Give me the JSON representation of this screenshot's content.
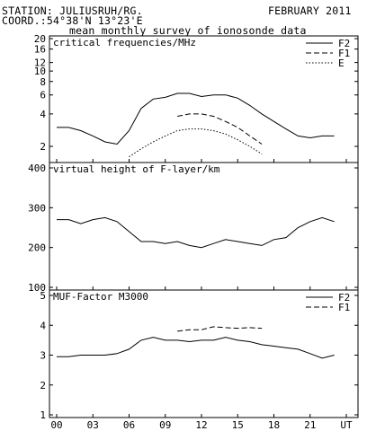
{
  "header": {
    "station": "STATION: JULIUSRUH/RG.",
    "date": "FEBRUARY 2011",
    "coord": "COORD.:54°38'N 13°23'E",
    "subtitle": "mean monthly survey of ionosonde data"
  },
  "chart_data": [
    {
      "type": "line",
      "title": "critical frequencies/MHz",
      "y_scale": "log",
      "ylim": [
        1.5,
        20
      ],
      "yticks": [
        "2",
        "4",
        "6",
        "8",
        "10",
        "12",
        "16",
        "20"
      ],
      "ytick_values": [
        2,
        4,
        6,
        8,
        10,
        12,
        16,
        20
      ],
      "x": [
        0,
        1,
        2,
        3,
        4,
        5,
        6,
        7,
        8,
        9,
        10,
        11,
        12,
        13,
        14,
        15,
        16,
        17,
        18,
        19,
        20,
        21,
        22,
        23
      ],
      "series": [
        {
          "name": "F2",
          "dash": "none",
          "values": [
            3.0,
            3.0,
            2.8,
            2.5,
            2.2,
            2.1,
            2.8,
            4.5,
            5.5,
            5.7,
            6.2,
            6.2,
            5.8,
            6.0,
            6.0,
            5.6,
            4.8,
            4.0,
            3.4,
            2.9,
            2.5,
            2.4,
            2.5,
            2.5
          ]
        },
        {
          "name": "F1",
          "dash": "6,3",
          "x": [
            10,
            11,
            12,
            13,
            14,
            15,
            16,
            17
          ],
          "values": [
            3.8,
            4.0,
            4.0,
            3.8,
            3.4,
            3.0,
            2.5,
            2.1
          ]
        },
        {
          "name": "E",
          "dash": "1.5,2",
          "x": [
            6,
            7,
            8,
            9,
            10,
            11,
            12,
            13,
            14,
            15,
            16,
            17
          ],
          "values": [
            1.6,
            1.9,
            2.2,
            2.5,
            2.8,
            2.9,
            2.9,
            2.8,
            2.6,
            2.3,
            2.0,
            1.7
          ]
        }
      ]
    },
    {
      "type": "line",
      "title": "virtual height of F-layer/km",
      "ylim": [
        100,
        400
      ],
      "yticks": [
        "100",
        "200",
        "300",
        "400"
      ],
      "ytick_values": [
        100,
        200,
        300,
        400
      ],
      "x": [
        0,
        1,
        2,
        3,
        4,
        5,
        6,
        7,
        8,
        9,
        10,
        11,
        12,
        13,
        14,
        15,
        16,
        17,
        18,
        19,
        20,
        21,
        22,
        23
      ],
      "series": [
        {
          "name": "",
          "dash": "none",
          "values": [
            270,
            270,
            260,
            270,
            275,
            265,
            240,
            215,
            215,
            210,
            215,
            205,
            200,
            210,
            220,
            215,
            210,
            205,
            220,
            225,
            250,
            265,
            275,
            265
          ]
        }
      ]
    },
    {
      "type": "line",
      "title": "MUF-Factor M3000",
      "ylim": [
        1,
        5
      ],
      "yticks": [
        "1",
        "2",
        "3",
        "4",
        "5"
      ],
      "ytick_values": [
        1,
        2,
        3,
        4,
        5
      ],
      "x": [
        0,
        1,
        2,
        3,
        4,
        5,
        6,
        7,
        8,
        9,
        10,
        11,
        12,
        13,
        14,
        15,
        16,
        17,
        18,
        19,
        20,
        21,
        22,
        23
      ],
      "series": [
        {
          "name": "F2",
          "dash": "none",
          "values": [
            2.95,
            2.95,
            3.0,
            3.0,
            3.0,
            3.05,
            3.2,
            3.5,
            3.6,
            3.5,
            3.5,
            3.45,
            3.5,
            3.5,
            3.6,
            3.5,
            3.45,
            3.35,
            3.3,
            3.25,
            3.2,
            3.05,
            2.9,
            3.0
          ]
        },
        {
          "name": "F1",
          "dash": "6,3",
          "x": [
            10,
            11,
            12,
            13,
            14,
            15,
            16,
            17
          ],
          "values": [
            3.8,
            3.85,
            3.85,
            3.95,
            3.92,
            3.9,
            3.92,
            3.9
          ]
        }
      ]
    }
  ],
  "xaxis": {
    "ticks": [
      "00",
      "03",
      "06",
      "09",
      "12",
      "15",
      "18",
      "21",
      "UT"
    ],
    "tick_hours": [
      0,
      3,
      6,
      9,
      12,
      15,
      18,
      21,
      24
    ]
  }
}
